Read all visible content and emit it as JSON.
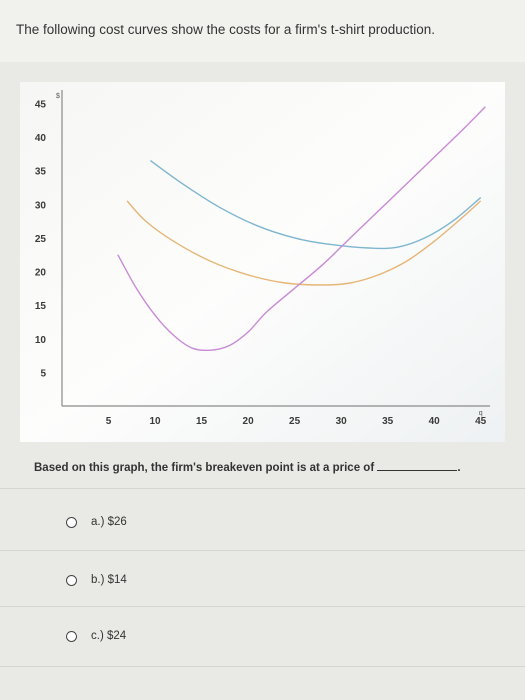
{
  "question": {
    "text": "The following cost curves show the costs for a firm's t-shirt production.",
    "prompt": "Based on this graph, the firm's breakeven point is at a price of",
    "prompt_end": "."
  },
  "options": [
    {
      "label": "a.) $26"
    },
    {
      "label": "b.) $14"
    },
    {
      "label": "c.) $24"
    }
  ],
  "colors": {
    "blue_curve": "#7eb6cf",
    "orange_curve": "#e6b676",
    "purple_curve": "#c98ad6",
    "pink_line": "#e79be0"
  },
  "chart_data": {
    "type": "line",
    "x_ticks": [
      "5",
      "10",
      "15",
      "20",
      "25",
      "30",
      "35",
      "40",
      "45"
    ],
    "y_ticks": [
      "5",
      "10",
      "15",
      "20",
      "25",
      "30",
      "35",
      "40",
      "45"
    ],
    "x_axis_end_label": "q",
    "y_axis_end_label": "$",
    "xlim": [
      0,
      46
    ],
    "ylim": [
      0,
      47
    ],
    "series": [
      {
        "color": "#7eb6cf",
        "points": [
          [
            9.5,
            36.5
          ],
          [
            13,
            33
          ],
          [
            17,
            29.5
          ],
          [
            21,
            26.8
          ],
          [
            25,
            25
          ],
          [
            29,
            24
          ],
          [
            33,
            23.5
          ],
          [
            36,
            23.6
          ],
          [
            39,
            25
          ],
          [
            42,
            27.5
          ],
          [
            45,
            31
          ]
        ]
      },
      {
        "color": "#e6b676",
        "points": [
          [
            7,
            30.5
          ],
          [
            9,
            27.5
          ],
          [
            12,
            24.5
          ],
          [
            16,
            21.5
          ],
          [
            20,
            19.5
          ],
          [
            24,
            18.3
          ],
          [
            28,
            18
          ],
          [
            31,
            18.3
          ],
          [
            34,
            19.5
          ],
          [
            37,
            21.5
          ],
          [
            40,
            24.5
          ],
          [
            43,
            28
          ],
          [
            45,
            30.5
          ]
        ]
      },
      {
        "color": "#c98ad6",
        "points": [
          [
            6,
            22.5
          ],
          [
            8,
            17.5
          ],
          [
            10,
            13.5
          ],
          [
            12,
            10.5
          ],
          [
            14,
            8.6
          ],
          [
            16,
            8.3
          ],
          [
            18,
            9
          ],
          [
            20,
            11
          ],
          [
            22,
            14
          ],
          [
            25,
            17.5
          ],
          [
            28,
            21
          ],
          [
            31,
            25
          ],
          [
            34,
            29
          ],
          [
            37,
            33
          ],
          [
            40,
            37
          ],
          [
            43,
            41
          ],
          [
            45.5,
            44.5
          ]
        ]
      }
    ]
  }
}
